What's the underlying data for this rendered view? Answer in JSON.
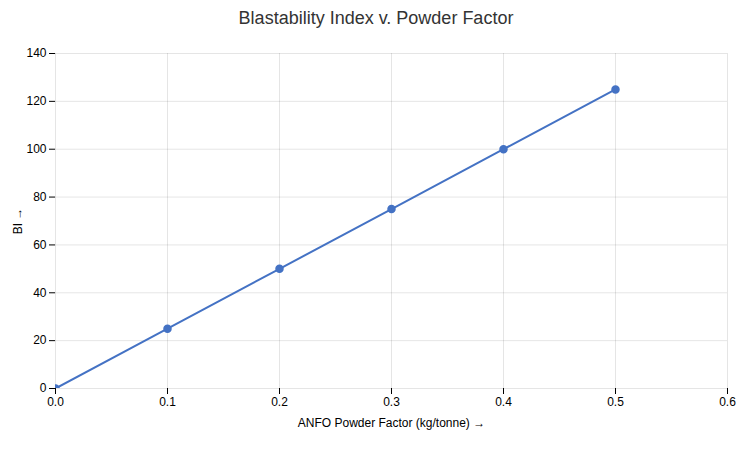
{
  "chart_data": {
    "type": "line",
    "title": "Blastability Index v. Powder Factor",
    "xlabel": "ANFO Powder Factor (kg/tonne)",
    "ylabel": "BI",
    "x": [
      0,
      0.1,
      0.2,
      0.3,
      0.4,
      0.5
    ],
    "values": [
      0,
      25,
      50,
      75,
      100,
      125
    ],
    "color": "#4472C4",
    "marker": "circle",
    "xlim": [
      0,
      0.6
    ],
    "ylim": [
      0,
      140
    ],
    "xticks": [
      {
        "value": 0,
        "label": "0.0"
      },
      0.1,
      0.2,
      0.3,
      0.4,
      0.5,
      0.6
    ],
    "yticks": [
      0,
      20,
      40,
      60,
      80,
      100,
      120,
      140
    ],
    "grid": true
  }
}
